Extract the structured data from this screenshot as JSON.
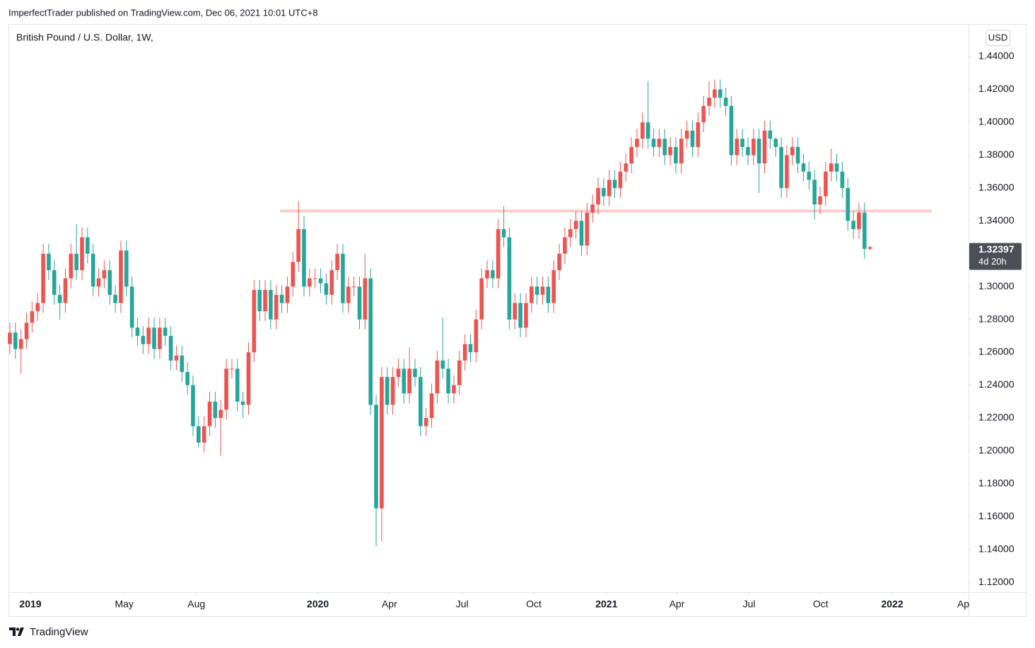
{
  "header": "ImperfectTrader published on TradingView.com, Dec 06, 2021 10:01 UTC+8",
  "footer": "TradingView",
  "chart_data": {
    "type": "candlestick",
    "title": "British Pound / U.S. Dollar, 1W,",
    "currency": "USD",
    "up_color": "#ef5350",
    "down_color": "#26a69a",
    "current_price": 1.32397,
    "countdown": "4d 20h",
    "hline": {
      "value": 1.346,
      "color": "#f9cdc6",
      "x": [
        48.7,
        166.1
      ]
    },
    "ylim": [
      1.114,
      1.4594
    ],
    "xlim": [
      -0.25,
      172.75
    ],
    "yticks": [
      {
        "value": 1.12,
        "label": "1.12000"
      },
      {
        "value": 1.14,
        "label": "1.14000"
      },
      {
        "value": 1.16,
        "label": "1.16000"
      },
      {
        "value": 1.18,
        "label": "1.18000"
      },
      {
        "value": 1.2,
        "label": "1.20000"
      },
      {
        "value": 1.22,
        "label": "1.22000"
      },
      {
        "value": 1.24,
        "label": "1.24000"
      },
      {
        "value": 1.26,
        "label": "1.26000"
      },
      {
        "value": 1.28,
        "label": "1.28000"
      },
      {
        "value": 1.3,
        "label": "1.30000"
      },
      {
        "value": 1.32,
        "label": "1.32000"
      },
      {
        "value": 1.34,
        "label": "1.34000"
      },
      {
        "value": 1.36,
        "label": "1.36000"
      },
      {
        "value": 1.38,
        "label": "1.38000"
      },
      {
        "value": 1.4,
        "label": "1.40000"
      },
      {
        "value": 1.42,
        "label": "1.42000"
      },
      {
        "value": 1.44,
        "label": "1.44000"
      }
    ],
    "xticks": [
      {
        "value": 3.7,
        "label": "2019"
      },
      {
        "value": 20.6,
        "label": "May"
      },
      {
        "value": 33.6,
        "label": "Aug"
      },
      {
        "value": 55.5,
        "label": "2020"
      },
      {
        "value": 68.4,
        "label": "Apr"
      },
      {
        "value": 81.5,
        "label": "Jul"
      },
      {
        "value": 94.4,
        "label": "Oct"
      },
      {
        "value": 107.5,
        "label": "2021"
      },
      {
        "value": 120.2,
        "label": "Apr"
      },
      {
        "value": 133.2,
        "label": "Jul"
      },
      {
        "value": 146.1,
        "label": "Oct"
      },
      {
        "value": 159,
        "label": "2022"
      },
      {
        "value": 171.8,
        "label": "Ap"
      }
    ],
    "open": [
      1.265,
      1.272,
      1.262,
      1.268,
      1.278,
      1.285,
      1.29,
      1.32,
      1.31,
      1.295,
      1.29,
      1.305,
      1.32,
      1.31,
      1.33,
      1.32,
      1.3,
      1.305,
      1.31,
      1.295,
      1.29,
      1.322,
      1.3,
      1.275,
      1.27,
      1.265,
      1.275,
      1.262,
      1.275,
      1.27,
      1.255,
      1.258,
      1.248,
      1.24,
      1.215,
      1.205,
      1.215,
      1.23,
      1.22,
      1.225,
      1.25,
      1.25,
      1.23,
      1.228,
      1.26,
      1.298,
      1.285,
      1.298,
      1.28,
      1.295,
      1.29,
      1.3,
      1.315,
      1.335,
      1.3,
      1.305,
      1.305,
      1.302,
      1.295,
      1.31,
      1.32,
      1.29,
      1.3,
      1.3,
      1.28,
      1.305,
      1.228,
      1.165,
      1.245,
      1.228,
      1.245,
      1.25,
      1.235,
      1.25,
      1.245,
      1.215,
      1.22,
      1.235,
      1.255,
      1.25,
      1.235,
      1.24,
      1.255,
      1.265,
      1.26,
      1.28,
      1.305,
      1.31,
      1.305,
      1.335,
      1.33,
      1.28,
      1.29,
      1.275,
      1.29,
      1.3,
      1.295,
      1.3,
      1.29,
      1.31,
      1.32,
      1.33,
      1.335,
      1.34,
      1.325,
      1.345,
      1.35,
      1.36,
      1.355,
      1.365,
      1.36,
      1.37,
      1.375,
      1.385,
      1.39,
      1.4,
      1.39,
      1.385,
      1.39,
      1.38,
      1.385,
      1.375,
      1.39,
      1.395,
      1.385,
      1.4,
      1.41,
      1.415,
      1.42,
      1.415,
      1.41,
      1.38,
      1.39,
      1.385,
      1.38,
      1.39,
      1.375,
      1.395,
      1.39,
      1.385,
      1.36,
      1.38,
      1.385,
      1.375,
      1.37,
      1.365,
      1.35,
      1.355,
      1.37,
      1.375,
      1.37,
      1.36,
      1.34,
      1.335,
      1.345,
      1.323
    ],
    "high": [
      1.278,
      1.278,
      1.274,
      1.284,
      1.291,
      1.296,
      1.326,
      1.326,
      1.316,
      1.301,
      1.311,
      1.326,
      1.338,
      1.336,
      1.336,
      1.326,
      1.311,
      1.316,
      1.316,
      1.301,
      1.328,
      1.328,
      1.306,
      1.281,
      1.276,
      1.281,
      1.281,
      1.281,
      1.281,
      1.276,
      1.264,
      1.264,
      1.254,
      1.246,
      1.221,
      1.221,
      1.236,
      1.236,
      1.231,
      1.256,
      1.256,
      1.256,
      1.236,
      1.266,
      1.304,
      1.304,
      1.304,
      1.304,
      1.301,
      1.301,
      1.306,
      1.321,
      1.352,
      1.343,
      1.311,
      1.311,
      1.311,
      1.308,
      1.316,
      1.326,
      1.326,
      1.306,
      1.306,
      1.306,
      1.32,
      1.311,
      1.234,
      1.251,
      1.251,
      1.251,
      1.256,
      1.256,
      1.263,
      1.256,
      1.251,
      1.226,
      1.241,
      1.261,
      1.281,
      1.256,
      1.246,
      1.261,
      1.271,
      1.271,
      1.286,
      1.311,
      1.316,
      1.316,
      1.341,
      1.349,
      1.336,
      1.296,
      1.296,
      1.296,
      1.306,
      1.306,
      1.306,
      1.306,
      1.316,
      1.326,
      1.336,
      1.341,
      1.346,
      1.346,
      1.351,
      1.356,
      1.366,
      1.366,
      1.371,
      1.371,
      1.376,
      1.381,
      1.391,
      1.396,
      1.406,
      1.425,
      1.396,
      1.396,
      1.396,
      1.391,
      1.391,
      1.396,
      1.401,
      1.401,
      1.406,
      1.416,
      1.425,
      1.426,
      1.426,
      1.421,
      1.416,
      1.396,
      1.396,
      1.391,
      1.396,
      1.396,
      1.401,
      1.401,
      1.391,
      1.391,
      1.386,
      1.391,
      1.391,
      1.381,
      1.376,
      1.371,
      1.361,
      1.376,
      1.384,
      1.381,
      1.376,
      1.366,
      1.346,
      1.351,
      1.351,
      1.325
    ],
    "low": [
      1.259,
      1.256,
      1.247,
      1.262,
      1.272,
      1.279,
      1.284,
      1.304,
      1.289,
      1.28,
      1.284,
      1.299,
      1.304,
      1.304,
      1.314,
      1.294,
      1.294,
      1.299,
      1.289,
      1.284,
      1.284,
      1.294,
      1.269,
      1.264,
      1.259,
      1.259,
      1.256,
      1.256,
      1.264,
      1.249,
      1.249,
      1.242,
      1.234,
      1.209,
      1.202,
      1.199,
      1.209,
      1.214,
      1.197,
      1.219,
      1.244,
      1.224,
      1.22,
      1.222,
      1.254,
      1.279,
      1.279,
      1.274,
      1.274,
      1.284,
      1.284,
      1.294,
      1.309,
      1.294,
      1.294,
      1.299,
      1.296,
      1.289,
      1.289,
      1.304,
      1.284,
      1.284,
      1.294,
      1.274,
      1.274,
      1.222,
      1.142,
      1.145,
      1.222,
      1.222,
      1.239,
      1.229,
      1.229,
      1.239,
      1.209,
      1.209,
      1.214,
      1.229,
      1.244,
      1.229,
      1.229,
      1.234,
      1.249,
      1.254,
      1.254,
      1.274,
      1.299,
      1.299,
      1.299,
      1.324,
      1.274,
      1.274,
      1.269,
      1.269,
      1.284,
      1.289,
      1.289,
      1.284,
      1.284,
      1.304,
      1.314,
      1.324,
      1.329,
      1.319,
      1.319,
      1.339,
      1.344,
      1.349,
      1.349,
      1.354,
      1.354,
      1.364,
      1.369,
      1.379,
      1.384,
      1.384,
      1.379,
      1.379,
      1.374,
      1.374,
      1.369,
      1.369,
      1.384,
      1.379,
      1.379,
      1.394,
      1.404,
      1.409,
      1.409,
      1.404,
      1.374,
      1.374,
      1.379,
      1.374,
      1.374,
      1.357,
      1.369,
      1.384,
      1.379,
      1.354,
      1.354,
      1.374,
      1.369,
      1.364,
      1.359,
      1.341,
      1.344,
      1.349,
      1.364,
      1.364,
      1.354,
      1.334,
      1.329,
      1.329,
      1.317,
      1.322
    ],
    "close": [
      1.272,
      1.262,
      1.268,
      1.278,
      1.285,
      1.29,
      1.32,
      1.31,
      1.295,
      1.29,
      1.305,
      1.32,
      1.31,
      1.33,
      1.32,
      1.3,
      1.305,
      1.31,
      1.295,
      1.29,
      1.322,
      1.3,
      1.275,
      1.27,
      1.265,
      1.275,
      1.262,
      1.275,
      1.27,
      1.255,
      1.258,
      1.248,
      1.24,
      1.215,
      1.205,
      1.215,
      1.23,
      1.22,
      1.225,
      1.25,
      1.25,
      1.23,
      1.228,
      1.26,
      1.298,
      1.285,
      1.298,
      1.28,
      1.295,
      1.29,
      1.3,
      1.315,
      1.335,
      1.3,
      1.305,
      1.305,
      1.302,
      1.295,
      1.31,
      1.32,
      1.29,
      1.3,
      1.3,
      1.28,
      1.305,
      1.228,
      1.165,
      1.245,
      1.228,
      1.245,
      1.25,
      1.235,
      1.25,
      1.245,
      1.215,
      1.22,
      1.235,
      1.255,
      1.25,
      1.235,
      1.24,
      1.255,
      1.265,
      1.26,
      1.28,
      1.305,
      1.31,
      1.305,
      1.335,
      1.33,
      1.28,
      1.29,
      1.275,
      1.29,
      1.3,
      1.295,
      1.3,
      1.29,
      1.31,
      1.32,
      1.33,
      1.335,
      1.34,
      1.325,
      1.345,
      1.35,
      1.36,
      1.355,
      1.365,
      1.36,
      1.37,
      1.375,
      1.385,
      1.39,
      1.4,
      1.39,
      1.385,
      1.39,
      1.38,
      1.385,
      1.375,
      1.39,
      1.395,
      1.385,
      1.4,
      1.41,
      1.415,
      1.42,
      1.415,
      1.41,
      1.38,
      1.39,
      1.385,
      1.38,
      1.39,
      1.375,
      1.395,
      1.39,
      1.385,
      1.36,
      1.38,
      1.385,
      1.375,
      1.37,
      1.365,
      1.35,
      1.355,
      1.37,
      1.375,
      1.37,
      1.36,
      1.34,
      1.335,
      1.345,
      1.323,
      1.324
    ]
  }
}
